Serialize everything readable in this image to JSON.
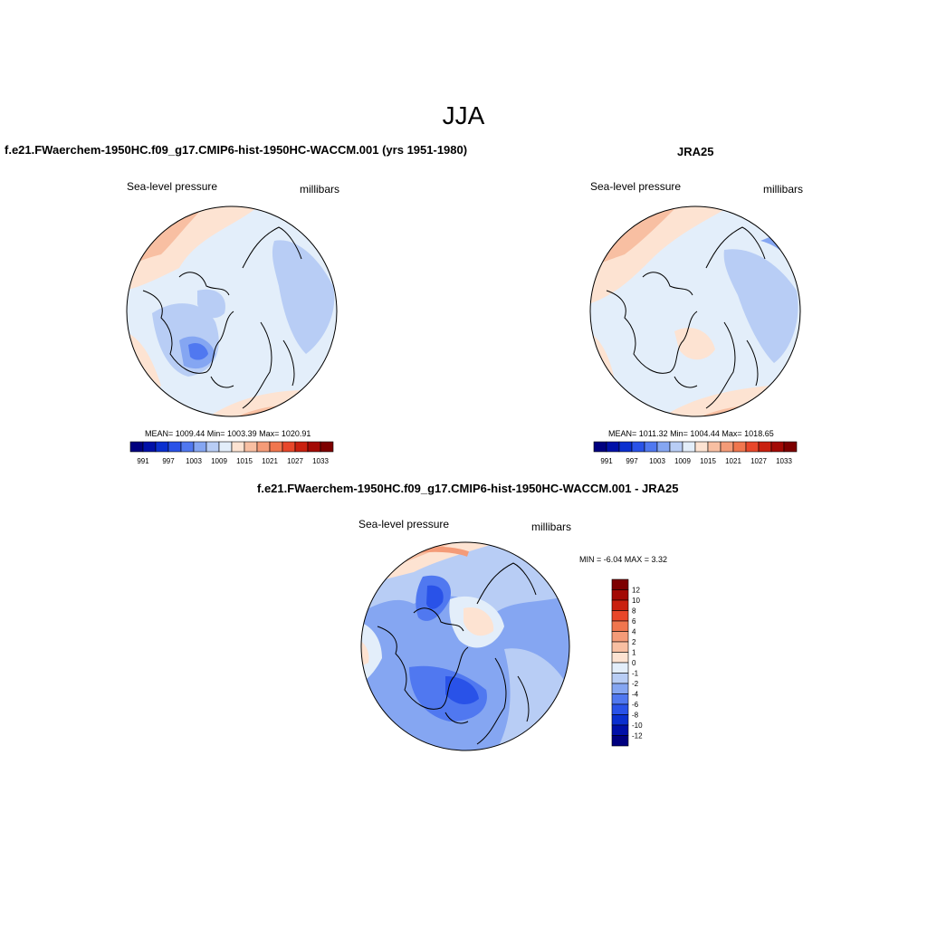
{
  "figure": {
    "title": "JJA"
  },
  "panels": [
    {
      "title": "f.e21.FWaerchem-1950HC.f09_g17.CMIP6-hist-1950HC-WACCM.001 (yrs 1951-1980)",
      "variable": "Sea-level pressure",
      "units": "millibars",
      "stats": "MEAN= 1009.44  Min= 1003.39  Max= 1020.91",
      "colorbar": {
        "orientation": "horizontal",
        "colors": [
          "#00007f",
          "#0010a8",
          "#0a2fcf",
          "#2952e8",
          "#5078f0",
          "#85a6f2",
          "#b8cdf5",
          "#e3eefa",
          "#fde3d2",
          "#f8bfa2",
          "#f49b78",
          "#f0764e",
          "#e8472a",
          "#c9200f",
          "#a30a05",
          "#7d0000"
        ],
        "labels": [
          "991",
          "997",
          "1003",
          "1009",
          "1015",
          "1021",
          "1027",
          "1033"
        ]
      }
    },
    {
      "title": "JRA25",
      "variable": "Sea-level pressure",
      "units": "millibars",
      "stats": "MEAN= 1011.32  Min= 1004.44  Max= 1018.65",
      "colorbar": {
        "orientation": "horizontal",
        "colors": [
          "#00007f",
          "#0010a8",
          "#0a2fcf",
          "#2952e8",
          "#5078f0",
          "#85a6f2",
          "#b8cdf5",
          "#e3eefa",
          "#fde3d2",
          "#f8bfa2",
          "#f49b78",
          "#f0764e",
          "#e8472a",
          "#c9200f",
          "#a30a05",
          "#7d0000"
        ],
        "labels": [
          "991",
          "997",
          "1003",
          "1009",
          "1015",
          "1021",
          "1027",
          "1033"
        ]
      }
    },
    {
      "title": "f.e21.FWaerchem-1950HC.f09_g17.CMIP6-hist-1950HC-WACCM.001 - JRA25",
      "variable": "Sea-level pressure",
      "units": "millibars",
      "stats": "MIN =  -6.04 MAX =   3.32",
      "colorbar": {
        "orientation": "vertical",
        "colors_top_to_bottom": [
          "#7d0000",
          "#a30a05",
          "#c9200f",
          "#e8472a",
          "#f0764e",
          "#f49b78",
          "#f8bfa2",
          "#fde3d2",
          "#e3eefa",
          "#b8cdf5",
          "#85a6f2",
          "#5078f0",
          "#2952e8",
          "#0a2fcf",
          "#0010a8",
          "#00007f"
        ],
        "labels_top_to_bottom": [
          "12",
          "10",
          "8",
          "6",
          "4",
          "2",
          "1",
          "0",
          "-1",
          "-2",
          "-4",
          "-6",
          "-8",
          "-10",
          "-12"
        ]
      }
    }
  ]
}
